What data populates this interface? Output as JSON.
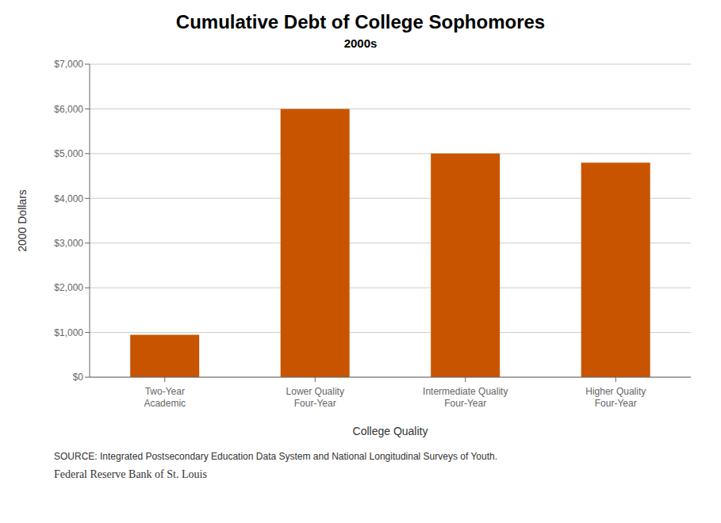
{
  "chart_data": {
    "type": "bar",
    "title": "Cumulative Debt of College Sophomores",
    "subtitle": "2000s",
    "xlabel": "College Quality",
    "ylabel": "2000 Dollars",
    "categories": [
      "Two-Year\nAcademic",
      "Lower Quality\nFour-Year",
      "Intermediate Quality\nFour-Year",
      "Higher Quality\nFour-Year"
    ],
    "values": [
      950,
      6000,
      5000,
      4800
    ],
    "color": "#C85400",
    "ylim": [
      0,
      7000
    ],
    "yticks": [
      {
        "value": 0,
        "label": "$0"
      },
      {
        "value": 1000,
        "label": "$1,000"
      },
      {
        "value": 2000,
        "label": "$2,000"
      },
      {
        "value": 3000,
        "label": "$3,000"
      },
      {
        "value": 4000,
        "label": "$4,000"
      },
      {
        "value": 5000,
        "label": "$5,000"
      },
      {
        "value": 6000,
        "label": "$6,000"
      },
      {
        "value": 7000,
        "label": "$7,000"
      }
    ],
    "grid": true,
    "annotations": [
      "SOURCE: Integrated Postsecondary Education Data System and National Longitudinal Surveys of Youth.",
      "Federal Reserve Bank of St. Louis"
    ]
  }
}
